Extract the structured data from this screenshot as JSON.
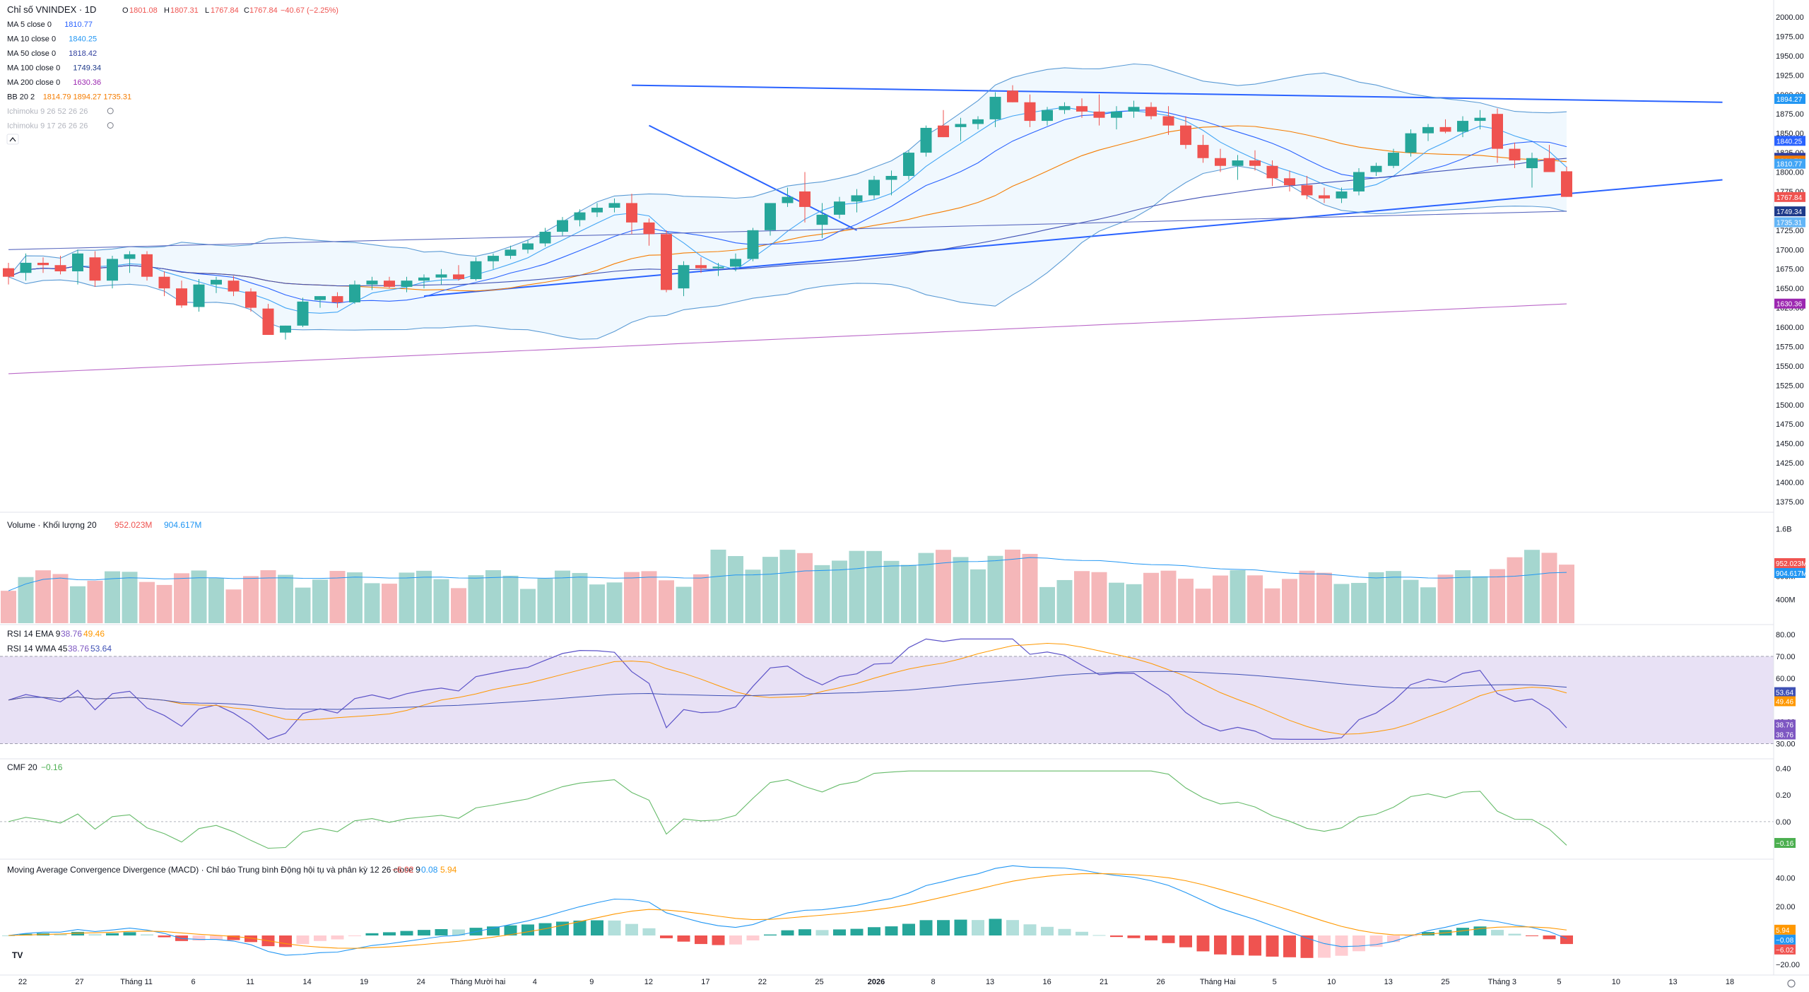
{
  "header": {
    "title": "Chỉ số VNINDEX · 1D",
    "ohlc": {
      "o_label": "O",
      "o": "1801.08",
      "h_label": "H",
      "h": "1807.31",
      "l_label": "L",
      "l": "1767.84",
      "c_label": "C",
      "c": "1767.84",
      "change": "−40.67 (−2.25%)"
    }
  },
  "legend": [
    {
      "label": "MA 5 close 0",
      "value": "1810.77",
      "color": "#2962ff"
    },
    {
      "label": "MA 10 close 0",
      "value": "1840.25",
      "color": "#2196f3"
    },
    {
      "label": "MA 50 close 0",
      "value": "1818.42",
      "color": "#303f9f"
    },
    {
      "label": "MA 100 close 0",
      "value": "1749.34",
      "color": "#1e3a8a"
    },
    {
      "label": "MA 200 close 0",
      "value": "1630.36",
      "color": "#9c27b0"
    },
    {
      "label": "BB 20 2",
      "value": "1814.79  1894.27  1735.31",
      "color": "#f57c00"
    },
    {
      "label": "Ichimoku 9 26 52 26 26",
      "value": "",
      "color": "#b2b5be"
    },
    {
      "label": "Ichimoku 9 17 26 26 26",
      "value": "",
      "color": "#b2b5be"
    }
  ],
  "colors": {
    "up": "#26a69a",
    "down": "#ef5350",
    "vol_up": "#a5d6cf",
    "vol_down": "#f5b7b9",
    "rsi_band": "#e8e1f5",
    "cmf": "#4caf50",
    "macd": "#2196f3",
    "signal": "#ff9800"
  },
  "x_labels": [
    "22",
    "27",
    "Tháng 11",
    "6",
    "11",
    "14",
    "19",
    "24",
    "Tháng Mười hai",
    "4",
    "9",
    "12",
    "17",
    "22",
    "25",
    "2026",
    "8",
    "13",
    "16",
    "21",
    "26",
    "Tháng Hai",
    "5",
    "10",
    "13",
    "25",
    "Tháng 3",
    "5",
    "10",
    "13",
    "18"
  ],
  "price_axis_ticks": [
    "2000.00",
    "1975.00",
    "1950.00",
    "1925.00",
    "1900.00",
    "1875.00",
    "1850.00",
    "1825.00",
    "1800.00",
    "1775.00",
    "1750.00",
    "1725.00",
    "1700.00",
    "1675.00",
    "1650.00",
    "1625.00",
    "1600.00",
    "1575.00",
    "1550.00",
    "1525.00",
    "1500.00",
    "1475.00",
    "1450.00",
    "1425.00",
    "1400.00",
    "1375.00"
  ],
  "price_badges": [
    {
      "value": "1894.27",
      "color": "#2196f3"
    },
    {
      "value": "1840.25",
      "color": "#2962ff"
    },
    {
      "value": "1818.42",
      "color": "#303f9f"
    },
    {
      "value": "1814.79",
      "color": "#f57c00"
    },
    {
      "value": "1810.77",
      "color": "#42a5f5"
    },
    {
      "value": "1767.84",
      "color": "#ef5350"
    },
    {
      "value": "1749.34",
      "color": "#1e3a8a"
    },
    {
      "value": "1735.31",
      "color": "#64b5f6"
    },
    {
      "value": "1630.36",
      "color": "#9c27b0"
    }
  ],
  "volume": {
    "label": "Volume · Khối lượng 20",
    "v1": "952.023M",
    "v2": "904.617M",
    "ticks": [
      "1.6B",
      "800M",
      "400M"
    ],
    "badges": [
      {
        "value": "952.023M",
        "color": "#ef5350"
      },
      {
        "value": "904.617M",
        "color": "#2196f3"
      }
    ]
  },
  "rsi": {
    "label1": "RSI 14 EMA 9",
    "l1v1": "38.76",
    "l1v2": "49.46",
    "label2": "RSI 14 WMA 45",
    "l2v1": "38.76",
    "l2v2": "53.64",
    "ticks": [
      "80.00",
      "70.00",
      "60.00",
      "40.00",
      "30.00"
    ],
    "badges": [
      {
        "value": "53.64",
        "color": "#3f51b5"
      },
      {
        "value": "49.46",
        "color": "#ff9800"
      },
      {
        "value": "38.76",
        "color": "#7e57c2"
      },
      {
        "value": "38.76",
        "color": "#7e57c2"
      }
    ]
  },
  "cmf": {
    "label": "CMF 20",
    "value": "−0.16",
    "ticks": [
      "0.40",
      "0.20",
      "0.00"
    ],
    "badge": {
      "value": "−0.16",
      "color": "#4caf50"
    }
  },
  "macd": {
    "label": "Moving Average Convergence Divergence (MACD) · Chỉ báo Trung bình Động hội tụ và phân kỳ 12 26 close 9",
    "v1": "−6.02",
    "v2": "−0.08",
    "v3": "5.94",
    "ticks": [
      "40.00",
      "20.00",
      "−20.00"
    ],
    "badges": [
      {
        "value": "5.94",
        "color": "#ff9800"
      },
      {
        "value": "−0.08",
        "color": "#2196f3"
      },
      {
        "value": "−6.02",
        "color": "#ef5350"
      }
    ]
  },
  "chart_data": {
    "type": "candlestick",
    "title": "Chỉ số VNINDEX · 1D",
    "ylim": [
      1375,
      2000
    ],
    "candles": [
      [
        1676,
        1683,
        1655,
        1665
      ],
      [
        1670,
        1695,
        1660,
        1683
      ],
      [
        1683,
        1690,
        1670,
        1680
      ],
      [
        1680,
        1692,
        1668,
        1672
      ],
      [
        1672,
        1700,
        1655,
        1695
      ],
      [
        1690,
        1698,
        1652,
        1660
      ],
      [
        1660,
        1692,
        1650,
        1688
      ],
      [
        1688,
        1698,
        1670,
        1694
      ],
      [
        1694,
        1698,
        1660,
        1665
      ],
      [
        1665,
        1672,
        1640,
        1650
      ],
      [
        1650,
        1660,
        1625,
        1628
      ],
      [
        1626,
        1662,
        1620,
        1655
      ],
      [
        1655,
        1665,
        1644,
        1661
      ],
      [
        1660,
        1666,
        1640,
        1646
      ],
      [
        1646,
        1650,
        1620,
        1625
      ],
      [
        1624,
        1630,
        1590,
        1590
      ],
      [
        1593,
        1602,
        1584,
        1602
      ],
      [
        1602,
        1638,
        1600,
        1633
      ],
      [
        1635,
        1640,
        1625,
        1640
      ],
      [
        1640,
        1645,
        1625,
        1632
      ],
      [
        1632,
        1660,
        1630,
        1655
      ],
      [
        1655,
        1665,
        1648,
        1660
      ],
      [
        1660,
        1665,
        1650,
        1652
      ],
      [
        1652,
        1665,
        1645,
        1660
      ],
      [
        1660,
        1668,
        1650,
        1664
      ],
      [
        1664,
        1675,
        1655,
        1668
      ],
      [
        1668,
        1680,
        1660,
        1662
      ],
      [
        1662,
        1690,
        1660,
        1685
      ],
      [
        1685,
        1695,
        1675,
        1692
      ],
      [
        1692,
        1705,
        1688,
        1700
      ],
      [
        1700,
        1712,
        1695,
        1708
      ],
      [
        1708,
        1728,
        1704,
        1723
      ],
      [
        1723,
        1742,
        1718,
        1738
      ],
      [
        1738,
        1752,
        1730,
        1748
      ],
      [
        1748,
        1760,
        1742,
        1754
      ],
      [
        1754,
        1766,
        1748,
        1760
      ],
      [
        1760,
        1772,
        1720,
        1735
      ],
      [
        1735,
        1740,
        1705,
        1720
      ],
      [
        1720,
        1725,
        1645,
        1648
      ],
      [
        1650,
        1685,
        1640,
        1680
      ],
      [
        1680,
        1690,
        1670,
        1676
      ],
      [
        1676,
        1683,
        1666,
        1678
      ],
      [
        1678,
        1695,
        1672,
        1688
      ],
      [
        1688,
        1728,
        1685,
        1725
      ],
      [
        1725,
        1755,
        1718,
        1760
      ],
      [
        1760,
        1780,
        1755,
        1768
      ],
      [
        1775,
        1800,
        1735,
        1755
      ],
      [
        1732,
        1760,
        1715,
        1745
      ],
      [
        1745,
        1768,
        1740,
        1762
      ],
      [
        1762,
        1778,
        1748,
        1770
      ],
      [
        1770,
        1795,
        1765,
        1790
      ],
      [
        1790,
        1802,
        1770,
        1795
      ],
      [
        1795,
        1828,
        1790,
        1825
      ],
      [
        1825,
        1860,
        1820,
        1857
      ],
      [
        1860,
        1880,
        1845,
        1845
      ],
      [
        1858,
        1870,
        1840,
        1862
      ],
      [
        1862,
        1872,
        1855,
        1868
      ],
      [
        1868,
        1903,
        1858,
        1897
      ],
      [
        1905,
        1912,
        1890,
        1890
      ],
      [
        1890,
        1900,
        1858,
        1866
      ],
      [
        1866,
        1884,
        1860,
        1880
      ],
      [
        1880,
        1890,
        1875,
        1885
      ],
      [
        1885,
        1895,
        1870,
        1878
      ],
      [
        1878,
        1900,
        1860,
        1870
      ],
      [
        1870,
        1885,
        1855,
        1878
      ],
      [
        1878,
        1892,
        1870,
        1884
      ],
      [
        1884,
        1890,
        1868,
        1872
      ],
      [
        1872,
        1885,
        1848,
        1860
      ],
      [
        1860,
        1872,
        1830,
        1835
      ],
      [
        1835,
        1848,
        1812,
        1818
      ],
      [
        1818,
        1830,
        1800,
        1808
      ],
      [
        1808,
        1822,
        1790,
        1815
      ],
      [
        1815,
        1828,
        1802,
        1808
      ],
      [
        1808,
        1815,
        1782,
        1792
      ],
      [
        1792,
        1802,
        1775,
        1783
      ],
      [
        1783,
        1795,
        1765,
        1770
      ],
      [
        1770,
        1780,
        1760,
        1766
      ],
      [
        1766,
        1780,
        1760,
        1775
      ],
      [
        1775,
        1805,
        1770,
        1800
      ],
      [
        1800,
        1812,
        1795,
        1808
      ],
      [
        1808,
        1830,
        1805,
        1825
      ],
      [
        1825,
        1855,
        1820,
        1850
      ],
      [
        1850,
        1862,
        1840,
        1858
      ],
      [
        1858,
        1868,
        1850,
        1852
      ],
      [
        1852,
        1872,
        1845,
        1866
      ],
      [
        1866,
        1880,
        1855,
        1870
      ],
      [
        1875,
        1882,
        1812,
        1830
      ],
      [
        1830,
        1838,
        1805,
        1815
      ],
      [
        1805,
        1825,
        1780,
        1818
      ],
      [
        1818,
        1835,
        1800,
        1800
      ],
      [
        1801,
        1807,
        1768,
        1768
      ]
    ]
  }
}
